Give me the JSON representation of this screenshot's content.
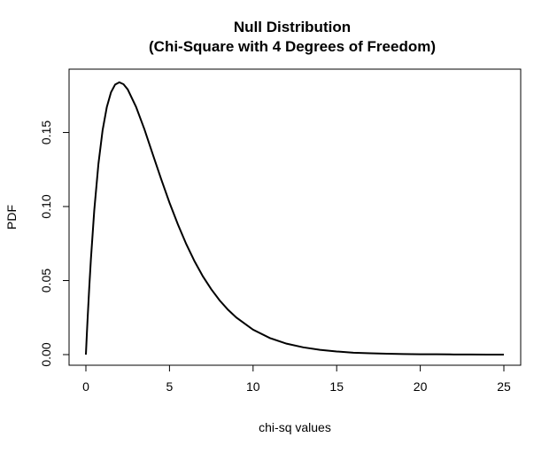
{
  "chart_data": {
    "type": "line",
    "title_line1": "Null Distribution",
    "title_line2": "(Chi-Square with 4 Degrees of Freedom)",
    "xlabel": "chi-sq values",
    "ylabel": "PDF",
    "xlim": [
      0,
      25
    ],
    "ylim": [
      0,
      0.185
    ],
    "x_ticks": [
      0,
      5,
      10,
      15,
      20,
      25
    ],
    "x_tick_labels": [
      "0",
      "5",
      "10",
      "15",
      "20",
      "25"
    ],
    "y_ticks": [
      0,
      0.05,
      0.1,
      0.15
    ],
    "y_tick_labels": [
      "0.00",
      "0.05",
      "0.10",
      "0.15"
    ],
    "grid": false,
    "legend": "none",
    "series": [
      {
        "x": [
          0,
          0.05,
          0.1,
          0.2,
          0.3,
          0.5,
          0.75,
          1,
          1.25,
          1.5,
          1.75,
          2,
          2.25,
          2.5,
          3,
          3.5,
          4,
          4.5,
          5,
          5.5,
          6,
          6.5,
          7,
          7.5,
          8,
          8.5,
          9,
          10,
          11,
          12,
          13,
          14,
          15,
          16,
          17,
          18,
          19,
          20,
          21,
          22,
          23,
          24,
          25
        ],
        "y": [
          0,
          0.0122,
          0.0238,
          0.0452,
          0.0645,
          0.0974,
          0.1289,
          0.1516,
          0.1671,
          0.1771,
          0.1824,
          0.1839,
          0.1826,
          0.1791,
          0.1673,
          0.1522,
          0.1353,
          0.1186,
          0.1026,
          0.088,
          0.0747,
          0.063,
          0.0528,
          0.0441,
          0.0366,
          0.0303,
          0.025,
          0.0168,
          0.0112,
          0.0074,
          0.0049,
          0.0032,
          0.0021,
          0.0013,
          0.0009,
          0.0006,
          0.0004,
          0.0002,
          0.0002,
          0.0001,
          0.0001,
          0.0,
          0.0
        ],
        "color": "#000000"
      }
    ]
  }
}
